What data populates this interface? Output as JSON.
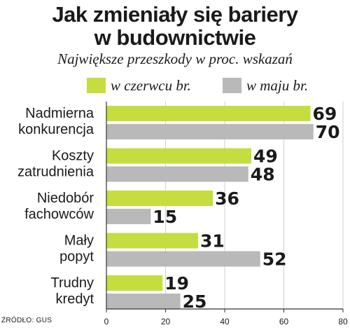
{
  "title_line1": "Jak zmieniały się bariery",
  "title_line2": "w budownictwie",
  "subtitle": "Największe przeszkody w proc. wskazań",
  "source": "ŹRÓDŁO: GUS",
  "colors": {
    "june": "#c5dd3f",
    "may": "#b9b9b9",
    "text": "#1a1a1a",
    "grid": "#cfcfcf"
  },
  "chart_data": {
    "type": "bar",
    "orientation": "horizontal",
    "categories": [
      [
        "Nadmierna",
        "konkurencja"
      ],
      [
        "Koszty",
        "zatrudnienia"
      ],
      [
        "Niedobór",
        "fachowców"
      ],
      [
        "Mały",
        "popyt"
      ],
      [
        "Trudny",
        "kredyt"
      ]
    ],
    "series": [
      {
        "name": "w czerwcu br.",
        "values": [
          69,
          49,
          36,
          31,
          19
        ]
      },
      {
        "name": "w maju br.",
        "values": [
          70,
          48,
          15,
          52,
          25
        ]
      }
    ],
    "xlim": [
      0,
      80
    ],
    "xticks": [
      0,
      20,
      40,
      60,
      80
    ],
    "legend_position": "top"
  }
}
